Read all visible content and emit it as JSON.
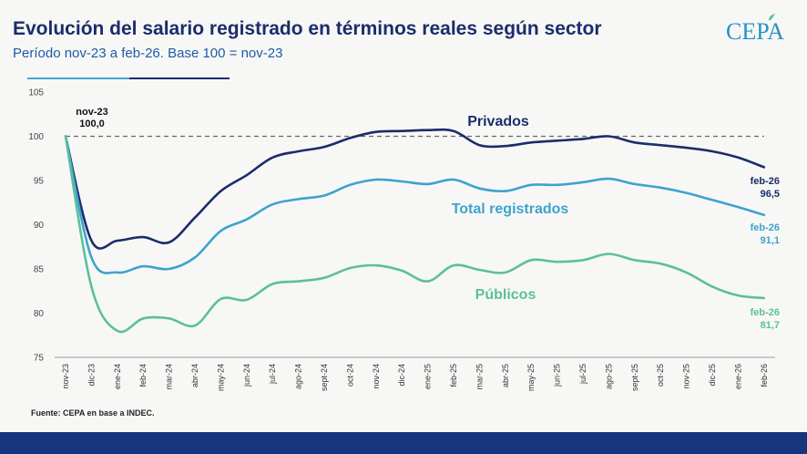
{
  "header": {
    "title": "Evolución del salario registrado en términos reales según sector",
    "subtitle": "Período nov-23 a feb-26. Base 100 = nov-23",
    "logo_text": "CEPA"
  },
  "source": "Fuente: CEPA en base a INDEC.",
  "colors": {
    "privados": "#1b2d6b",
    "total": "#3ea3cc",
    "publicos": "#5cbf9b",
    "footer": "#16357e"
  },
  "chart_data": {
    "type": "line",
    "title": "Evolución del salario registrado en términos reales según sector",
    "subtitle": "Período nov-23 a feb-26. Base 100 = nov-23",
    "ylim": [
      75,
      105
    ],
    "yticks": [
      75,
      80,
      85,
      90,
      95,
      100,
      105
    ],
    "reference_line": 100,
    "grid": false,
    "categories": [
      "nov-23",
      "dic-23",
      "ene-24",
      "feb-24",
      "mar-24",
      "abr-24",
      "may-24",
      "jun-24",
      "jul-24",
      "ago-24",
      "sept-24",
      "oct-24",
      "nov-24",
      "dic-24",
      "ene-25",
      "feb-25",
      "mar-25",
      "abr-25",
      "may-25",
      "jun-25",
      "jul-25",
      "ago-25",
      "sept-25",
      "oct-25",
      "nov-25",
      "dic-25",
      "ene-26",
      "feb-26"
    ],
    "series": [
      {
        "name": "Privados",
        "color": "#1b2d6b",
        "values": [
          100.0,
          88.2,
          88.2,
          88.6,
          88.0,
          90.8,
          93.8,
          95.6,
          97.6,
          98.3,
          98.8,
          99.8,
          100.5,
          100.6,
          100.7,
          100.6,
          99.0,
          98.9,
          99.3,
          99.5,
          99.7,
          100.0,
          99.3,
          99.0,
          98.7,
          98.3,
          97.6,
          96.5
        ]
      },
      {
        "name": "Total registrados",
        "color": "#3ea3cc",
        "values": [
          100.0,
          86.3,
          84.6,
          85.3,
          85.0,
          86.3,
          89.3,
          90.6,
          92.3,
          92.9,
          93.3,
          94.5,
          95.1,
          94.9,
          94.6,
          95.1,
          94.1,
          93.8,
          94.5,
          94.5,
          94.8,
          95.2,
          94.6,
          94.2,
          93.6,
          92.8,
          92.0,
          91.1
        ]
      },
      {
        "name": "Públicos",
        "color": "#5cbf9b",
        "values": [
          100.0,
          83.0,
          78.0,
          79.4,
          79.4,
          78.6,
          81.6,
          81.5,
          83.3,
          83.6,
          84.0,
          85.1,
          85.4,
          84.8,
          83.6,
          85.4,
          84.9,
          84.6,
          86.0,
          85.8,
          86.0,
          86.7,
          86.0,
          85.6,
          84.6,
          83.0,
          82.0,
          81.7
        ]
      }
    ],
    "annotations": {
      "start_label": "nov-23",
      "start_value": "100,0",
      "privados_end_date": "feb-26",
      "privados_end_value": "96,5",
      "total_end_date": "feb-26",
      "total_end_value": "91,1",
      "publicos_end_date": "feb-26",
      "publicos_end_value": "81,7"
    }
  }
}
